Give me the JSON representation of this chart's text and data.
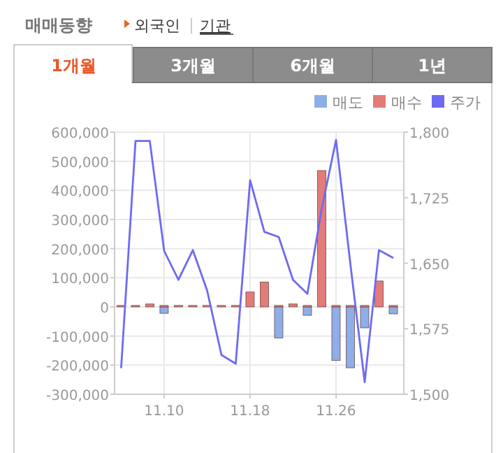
{
  "chart_data": {
    "type": "bar",
    "title": "매매동향",
    "annotations": [
      "외국인",
      "기관",
      "1개월",
      "3개월",
      "6개월",
      "1년"
    ],
    "categories": [
      null,
      null,
      null,
      "11.10",
      null,
      null,
      null,
      null,
      null,
      "11.18",
      null,
      null,
      null,
      null,
      null,
      "11.26",
      null,
      null,
      null,
      null
    ],
    "grid": true,
    "legend": "top right",
    "series": [
      {
        "name": "매도",
        "color": "#8eaee8",
        "values": [
          null,
          null,
          null,
          -22000,
          null,
          null,
          null,
          null,
          null,
          null,
          null,
          -107000,
          null,
          -29000,
          null,
          -184000,
          -209000,
          -72000,
          null,
          -24000
        ]
      },
      {
        "name": "매수",
        "color": "#e27c78",
        "values": [
          5000,
          5000,
          10000,
          5000,
          5000,
          5000,
          5000,
          5000,
          5000,
          51000,
          85000,
          5000,
          10000,
          5000,
          468000,
          5000,
          5000,
          5000,
          89000,
          5000
        ]
      },
      {
        "name": "주가",
        "color": "#6e6af2",
        "type": "line",
        "axis": "y2",
        "values": [
          1530,
          1790,
          1790,
          1664,
          1631,
          1665,
          1619,
          1545,
          1535,
          1745,
          1686,
          1680,
          1631,
          1615,
          1712,
          1791,
          1650,
          1514,
          1665,
          1656
        ]
      }
    ],
    "ylim": [
      -300000,
      600000
    ],
    "yticks": [
      {
        "value": -300000,
        "label": "-300,000"
      },
      {
        "value": -200000,
        "label": "-200,000"
      },
      {
        "value": -100000,
        "label": "-100,000"
      },
      0,
      {
        "value": 100000,
        "label": "100,000"
      },
      {
        "value": 200000,
        "label": "200,000"
      },
      {
        "value": 300000,
        "label": "300,000"
      },
      {
        "value": 400000,
        "label": "400,000"
      },
      {
        "value": 500000,
        "label": "500,000"
      },
      {
        "value": 600000,
        "label": "600,000"
      }
    ],
    "y2lim": [
      1500,
      1800
    ],
    "y2ticks": [
      {
        "value": 1500,
        "label": "1,500"
      },
      {
        "value": 1575,
        "label": "1,575"
      },
      {
        "value": 1650,
        "label": "1,650"
      },
      {
        "value": 1725,
        "label": "1,725"
      },
      {
        "value": 1800,
        "label": "1,800"
      }
    ]
  }
}
